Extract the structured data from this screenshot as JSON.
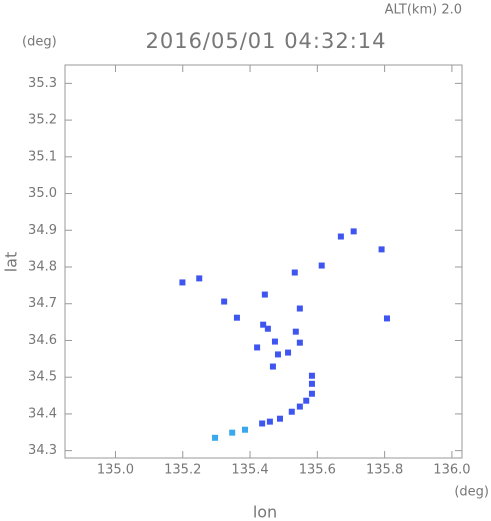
{
  "chart_data": {
    "type": "scatter",
    "title": "2016/05/01 04:32:14",
    "subtitle": "ALT(km) 2.0",
    "x_label": "lon",
    "y_label": "lat",
    "x_unit": "(deg)",
    "y_unit": "(deg)",
    "xlim": [
      134.85,
      136.03
    ],
    "ylim": [
      34.28,
      35.35
    ],
    "xticks": [
      {
        "value": 135,
        "label": "135.0"
      },
      135.2,
      135.4,
      135.6,
      135.8,
      {
        "value": 136,
        "label": "136.0"
      }
    ],
    "yticks": [
      34.3,
      34.4,
      34.5,
      34.6,
      34.7,
      34.8,
      34.9,
      {
        "value": 35,
        "label": "35.0"
      },
      35.1,
      35.2,
      35.3
    ],
    "series": [
      {
        "color": "#3f55f0",
        "x": [
          135.199,
          135.249,
          135.323,
          135.361,
          135.444,
          135.439,
          135.453,
          135.474,
          135.421,
          135.483,
          135.468,
          135.513,
          135.536,
          135.548,
          135.548,
          135.533,
          135.613,
          135.67,
          135.708,
          135.791,
          135.807,
          135.436,
          135.459,
          135.489,
          135.524,
          135.548,
          135.567,
          135.584,
          135.584,
          135.584
        ],
        "values": [
          34.758,
          34.769,
          34.706,
          34.662,
          34.725,
          34.643,
          34.632,
          34.597,
          34.581,
          34.562,
          34.529,
          34.567,
          34.624,
          34.594,
          34.687,
          34.785,
          34.804,
          34.883,
          34.897,
          34.848,
          34.66,
          34.374,
          34.379,
          34.387,
          34.406,
          34.42,
          34.436,
          34.455,
          34.482,
          34.504
        ]
      },
      {
        "color": "#3aa8ee",
        "x": [
          135.296,
          135.347,
          135.385
        ],
        "values": [
          34.335,
          34.349,
          34.357
        ]
      }
    ]
  }
}
